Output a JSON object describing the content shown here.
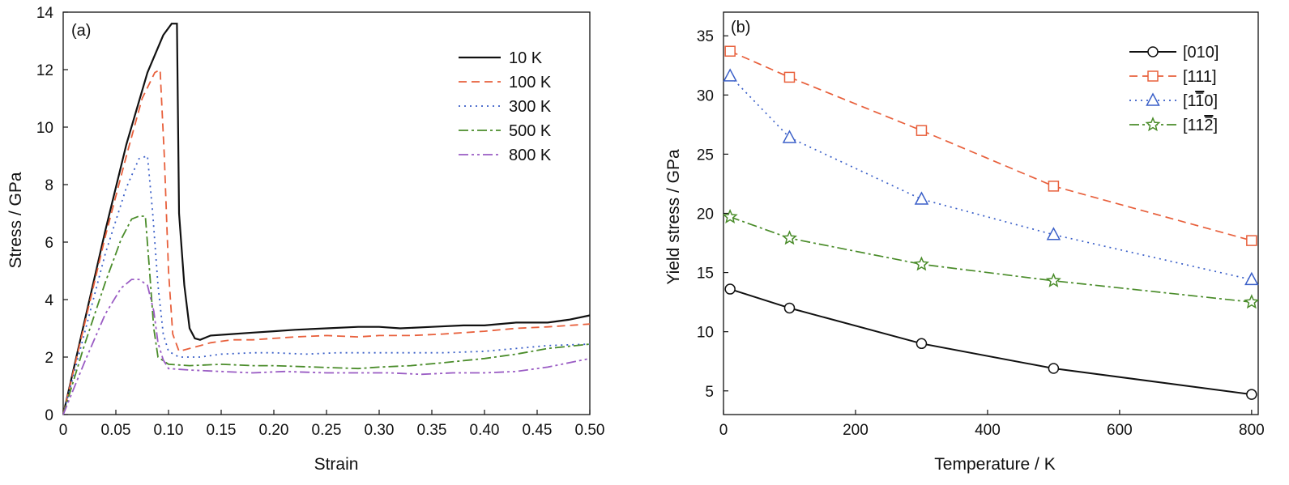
{
  "chart_data": [
    {
      "type": "line",
      "panel_label": "(a)",
      "xlabel": "Strain",
      "ylabel": "Stress / GPa",
      "xlim": [
        0,
        0.5
      ],
      "ylim": [
        0,
        14
      ],
      "xticks": [
        "0",
        "0.05",
        "0.10",
        "0.15",
        "0.20",
        "0.25",
        "0.30",
        "0.35",
        "0.40",
        "0.45",
        "0.50"
      ],
      "yticks": [
        "0",
        "2",
        "4",
        "6",
        "8",
        "10",
        "12",
        "14"
      ],
      "grid": false,
      "legend_position": "top-right",
      "series": [
        {
          "name": "10 K",
          "color": "#111111",
          "dash": "solid",
          "points": [
            [
              0,
              0
            ],
            [
              0.02,
              3.2
            ],
            [
              0.04,
              6.4
            ],
            [
              0.06,
              9.4
            ],
            [
              0.08,
              11.9
            ],
            [
              0.095,
              13.2
            ],
            [
              0.103,
              13.6
            ],
            [
              0.108,
              13.6
            ],
            [
              0.11,
              7.0
            ],
            [
              0.115,
              4.5
            ],
            [
              0.12,
              3.0
            ],
            [
              0.125,
              2.65
            ],
            [
              0.13,
              2.6
            ],
            [
              0.14,
              2.75
            ],
            [
              0.16,
              2.8
            ],
            [
              0.18,
              2.85
            ],
            [
              0.2,
              2.9
            ],
            [
              0.22,
              2.95
            ],
            [
              0.25,
              3.0
            ],
            [
              0.28,
              3.05
            ],
            [
              0.3,
              3.05
            ],
            [
              0.32,
              3.0
            ],
            [
              0.35,
              3.05
            ],
            [
              0.38,
              3.1
            ],
            [
              0.4,
              3.1
            ],
            [
              0.43,
              3.2
            ],
            [
              0.46,
              3.2
            ],
            [
              0.48,
              3.3
            ],
            [
              0.5,
              3.45
            ]
          ]
        },
        {
          "name": "100 K",
          "color": "#e8603c",
          "dash": "10,6",
          "points": [
            [
              0,
              0
            ],
            [
              0.02,
              3.1
            ],
            [
              0.04,
              6.2
            ],
            [
              0.06,
              9.0
            ],
            [
              0.075,
              11.0
            ],
            [
              0.087,
              11.9
            ],
            [
              0.092,
              12.0
            ],
            [
              0.096,
              9.0
            ],
            [
              0.1,
              5.0
            ],
            [
              0.104,
              2.8
            ],
            [
              0.11,
              2.2
            ],
            [
              0.12,
              2.3
            ],
            [
              0.14,
              2.5
            ],
            [
              0.16,
              2.6
            ],
            [
              0.18,
              2.6
            ],
            [
              0.2,
              2.65
            ],
            [
              0.22,
              2.7
            ],
            [
              0.25,
              2.75
            ],
            [
              0.28,
              2.7
            ],
            [
              0.3,
              2.75
            ],
            [
              0.33,
              2.75
            ],
            [
              0.36,
              2.8
            ],
            [
              0.4,
              2.9
            ],
            [
              0.43,
              3.0
            ],
            [
              0.46,
              3.05
            ],
            [
              0.5,
              3.15
            ]
          ]
        },
        {
          "name": "300 K",
          "color": "#3a5fc8",
          "dash": "2,5",
          "points": [
            [
              0,
              0
            ],
            [
              0.02,
              2.8
            ],
            [
              0.04,
              5.6
            ],
            [
              0.06,
              7.9
            ],
            [
              0.072,
              8.9
            ],
            [
              0.08,
              9.0
            ],
            [
              0.085,
              7.0
            ],
            [
              0.09,
              4.5
            ],
            [
              0.095,
              2.8
            ],
            [
              0.1,
              2.2
            ],
            [
              0.11,
              2.0
            ],
            [
              0.13,
              2.0
            ],
            [
              0.15,
              2.1
            ],
            [
              0.18,
              2.15
            ],
            [
              0.2,
              2.15
            ],
            [
              0.23,
              2.1
            ],
            [
              0.26,
              2.15
            ],
            [
              0.3,
              2.15
            ],
            [
              0.33,
              2.15
            ],
            [
              0.36,
              2.15
            ],
            [
              0.4,
              2.2
            ],
            [
              0.43,
              2.3
            ],
            [
              0.46,
              2.4
            ],
            [
              0.5,
              2.45
            ]
          ]
        },
        {
          "name": "500 K",
          "color": "#4a8c2a",
          "dash": "12,4,3,4",
          "points": [
            [
              0,
              0
            ],
            [
              0.02,
              2.4
            ],
            [
              0.04,
              4.6
            ],
            [
              0.055,
              6.1
            ],
            [
              0.065,
              6.8
            ],
            [
              0.072,
              6.9
            ],
            [
              0.078,
              6.9
            ],
            [
              0.082,
              5.0
            ],
            [
              0.086,
              3.0
            ],
            [
              0.09,
              2.0
            ],
            [
              0.1,
              1.75
            ],
            [
              0.12,
              1.7
            ],
            [
              0.15,
              1.75
            ],
            [
              0.18,
              1.7
            ],
            [
              0.2,
              1.7
            ],
            [
              0.24,
              1.65
            ],
            [
              0.28,
              1.6
            ],
            [
              0.3,
              1.65
            ],
            [
              0.33,
              1.7
            ],
            [
              0.36,
              1.8
            ],
            [
              0.4,
              1.95
            ],
            [
              0.43,
              2.1
            ],
            [
              0.46,
              2.3
            ],
            [
              0.5,
              2.45
            ]
          ]
        },
        {
          "name": "800 K",
          "color": "#9a5cc4",
          "dash": "12,4,3,4,3,4",
          "points": [
            [
              0,
              0
            ],
            [
              0.02,
              1.8
            ],
            [
              0.04,
              3.5
            ],
            [
              0.055,
              4.4
            ],
            [
              0.065,
              4.7
            ],
            [
              0.072,
              4.7
            ],
            [
              0.08,
              4.5
            ],
            [
              0.086,
              3.6
            ],
            [
              0.09,
              2.5
            ],
            [
              0.095,
              1.9
            ],
            [
              0.1,
              1.6
            ],
            [
              0.12,
              1.55
            ],
            [
              0.15,
              1.5
            ],
            [
              0.18,
              1.45
            ],
            [
              0.21,
              1.5
            ],
            [
              0.25,
              1.45
            ],
            [
              0.28,
              1.45
            ],
            [
              0.31,
              1.45
            ],
            [
              0.34,
              1.4
            ],
            [
              0.37,
              1.45
            ],
            [
              0.4,
              1.45
            ],
            [
              0.43,
              1.5
            ],
            [
              0.46,
              1.65
            ],
            [
              0.5,
              1.95
            ]
          ]
        }
      ]
    },
    {
      "type": "line",
      "panel_label": "(b)",
      "xlabel": "Temperature / K",
      "ylabel": "Yield stress / GPa",
      "xlim": [
        0,
        810
      ],
      "ylim": [
        3,
        37
      ],
      "xticks": [
        "0",
        "200",
        "400",
        "600",
        "800"
      ],
      "yticks": [
        "5",
        "10",
        "15",
        "20",
        "25",
        "30",
        "35"
      ],
      "x": [
        10,
        100,
        300,
        500,
        800
      ],
      "grid": false,
      "legend_position": "top-right",
      "series": [
        {
          "name": "[010]",
          "color": "#111111",
          "dash": "solid",
          "marker": "circle",
          "values": [
            13.6,
            12.0,
            9.0,
            6.9,
            4.7
          ]
        },
        {
          "name": "[111]",
          "color": "#e8603c",
          "dash": "10,6",
          "marker": "square",
          "values": [
            33.7,
            31.5,
            27.0,
            22.3,
            17.7
          ]
        },
        {
          "name_parts": [
            "[1",
            "1",
            "0]"
          ],
          "color": "#3a5fc8",
          "dash": "2,5",
          "marker": "triangle",
          "values": [
            31.6,
            26.4,
            21.2,
            18.2,
            14.4
          ]
        },
        {
          "name_parts": [
            "[11",
            "2",
            "]"
          ],
          "color": "#4a8c2a",
          "dash": "12,4,3,4",
          "marker": "star",
          "values": [
            19.7,
            17.9,
            15.7,
            14.3,
            12.5
          ]
        }
      ]
    }
  ]
}
